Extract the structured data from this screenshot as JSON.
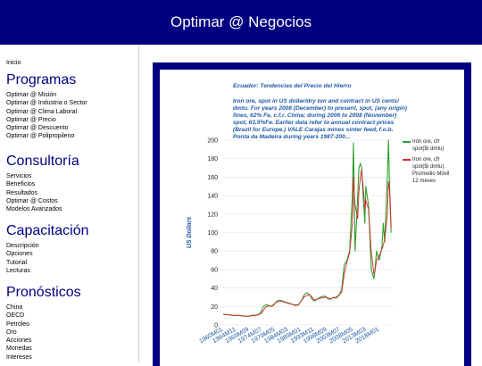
{
  "header": {
    "title": "Optimar @ Negocios"
  },
  "sidebar": {
    "home": "Inicio",
    "sections": [
      {
        "title": "Programas",
        "items": [
          "Optimar @ Misión",
          "Optimar @ Industria o Sector",
          "Optimar @ Clima Laboral",
          "Optimar @ Precio",
          "Optimar @ Descuento",
          "Optimar @ Polipropileno"
        ]
      },
      {
        "title": "Consultoría",
        "items": [
          "Servicios",
          "Beneficios",
          "Resultados",
          "Optimar @ Costos",
          "Modelos Avanzados"
        ]
      },
      {
        "title": "Capacitación",
        "items": [
          "Descripción",
          "Opciones",
          "Tutorial",
          "Lecturas"
        ]
      },
      {
        "title": "Pronósticos",
        "items": [
          "China",
          "OECD",
          "Petróleo",
          "Oro",
          "Acciones",
          "Monedas",
          "Intereses"
        ]
      }
    ]
  },
  "chart": {
    "title": "Ecuador: Tendencias del Precio del Hierro",
    "subtitle": "Iron ore, spot in US dollar/dry ton and contract in US cents/ dmtu. For years 2008 (December) to present, spot, (any origin) fines, 62% Fe, c.f.r. China; during 2006 to 2008 (November) spot, 63.5%Fe. Earlier data refer to annual contract prices (Brazil for Europe.) VALE Carajas mines sinter feed, f.o.b. Ponta da Madeira during years 1987-200...",
    "legend": [
      {
        "label": "Iron ore, cfr spot($/ dmtu)",
        "color": "#2ca02c"
      },
      {
        "label": "Iron ore, cfr spot($/ dmtu), Promedio Móvil 12 meses",
        "color": "#d62728"
      }
    ]
  },
  "chart_data": {
    "type": "line",
    "ylabel": "US Dollars",
    "xlabel": "",
    "ylim": [
      0,
      200
    ],
    "yticks": [
      0,
      20,
      40,
      60,
      80,
      100,
      120,
      140,
      160,
      180,
      200
    ],
    "xticks": [
      "1960M01",
      "1964M11",
      "1969M09",
      "1974M07",
      "1979M05",
      "1984M03",
      "1989M01",
      "1993M11",
      "1998M09",
      "2003M07",
      "2008M05",
      "2013M03",
      "2018M01"
    ],
    "series": [
      {
        "name": "Iron ore, cfr spot($/ dmtu)",
        "color": "#2ca02c",
        "x": [
          "1960M01",
          "1961M01",
          "1962M01",
          "1963M01",
          "1964M01",
          "1965M01",
          "1966M01",
          "1967M01",
          "1968M01",
          "1969M01",
          "1970M01",
          "1971M01",
          "1972M01",
          "1973M01",
          "1974M01",
          "1975M01",
          "1976M01",
          "1977M01",
          "1978M01",
          "1979M01",
          "1980M01",
          "1981M01",
          "1982M01",
          "1983M01",
          "1984M01",
          "1985M01",
          "1986M01",
          "1987M01",
          "1988M01",
          "1989M01",
          "1990M01",
          "1991M01",
          "1992M01",
          "1993M01",
          "1994M01",
          "1995M01",
          "1996M01",
          "1997M01",
          "1998M01",
          "1999M01",
          "2000M01",
          "2001M01",
          "2002M01",
          "2003M01",
          "2004M01",
          "2005M01",
          "2006M01",
          "2007M01",
          "2008M01",
          "2008M06",
          "2009M01",
          "2010M01",
          "2010M06",
          "2011M01",
          "2011M06",
          "2012M01",
          "2012M09",
          "2013M01",
          "2014M01",
          "2015M01",
          "2016M01",
          "2016M06",
          "2017M01",
          "2018M01",
          "2019M01",
          "2019M07",
          "2020M01",
          "2021M01",
          "2021M06",
          "2022M01",
          "2022M06"
        ],
        "values": [
          11.5,
          11.2,
          11,
          10.5,
          10.2,
          10.5,
          10.3,
          9.8,
          9.5,
          9.4,
          9.8,
          10.5,
          10.4,
          10.6,
          14,
          20,
          22,
          21,
          20,
          22,
          26,
          27,
          26,
          25,
          24,
          23,
          22,
          21,
          22,
          26,
          32,
          35,
          33,
          28,
          26,
          28,
          30,
          31,
          31,
          28,
          28,
          30,
          29,
          32,
          38,
          65,
          70,
          80,
          140,
          197,
          80,
          140,
          170,
          175,
          170,
          140,
          110,
          150,
          130,
          60,
          50,
          60,
          80,
          70,
          85,
          110,
          90,
          160,
          200,
          130,
          100
        ]
      },
      {
        "name": "Iron ore, cfr spot($/ dmtu), Promedio Móvil 12 meses",
        "color": "#d62728",
        "x": [
          "1960M01",
          "1962M01",
          "1964M01",
          "1966M01",
          "1968M01",
          "1970M01",
          "1972M01",
          "1974M01",
          "1976M01",
          "1978M01",
          "1980M01",
          "1982M01",
          "1984M01",
          "1986M01",
          "1988M01",
          "1990M01",
          "1992M01",
          "1994M01",
          "1996M01",
          "1998M01",
          "2000M01",
          "2002M01",
          "2004M01",
          "2005M01",
          "2006M01",
          "2007M01",
          "2008M01",
          "2008M06",
          "2009M01",
          "2010M01",
          "2010M06",
          "2011M01",
          "2011M06",
          "2012M01",
          "2012M09",
          "2013M01",
          "2014M01",
          "2015M01",
          "2016M01",
          "2016M06",
          "2017M01",
          "2018M01",
          "2019M01",
          "2020M01",
          "2021M01",
          "2021M06",
          "2022M01",
          "2022M06"
        ],
        "values": [
          11.5,
          11.1,
          10.3,
          10.2,
          9.6,
          9.7,
          10.4,
          12,
          20,
          20.5,
          25,
          25.5,
          23.5,
          22,
          21.5,
          30,
          33,
          27,
          29,
          30,
          28.5,
          30,
          35,
          55,
          68,
          78,
          110,
          160,
          130,
          115,
          145,
          160,
          168,
          150,
          125,
          135,
          125,
          80,
          55,
          58,
          70,
          75,
          82,
          92,
          120,
          155,
          140,
          105
        ]
      }
    ]
  }
}
